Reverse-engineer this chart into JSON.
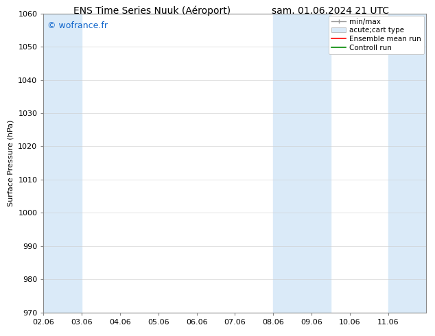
{
  "title_left": "ENS Time Series Nuuk (Aéroport)",
  "title_right": "sam. 01.06.2024 21 UTC",
  "ylabel": "Surface Pressure (hPa)",
  "ylim": [
    970,
    1060
  ],
  "yticks": [
    970,
    980,
    990,
    1000,
    1010,
    1020,
    1030,
    1040,
    1050,
    1060
  ],
  "xlim_start": 0,
  "xlim_end": 10,
  "xtick_labels": [
    "02.06",
    "03.06",
    "04.06",
    "05.06",
    "06.06",
    "07.06",
    "08.06",
    "09.06",
    "10.06",
    "11.06"
  ],
  "xtick_positions": [
    0,
    1,
    2,
    3,
    4,
    5,
    6,
    7,
    8,
    9
  ],
  "watermark": "© wofrance.fr",
  "watermark_color": "#1166cc",
  "bg_color": "#ffffff",
  "plot_bg_color": "#ffffff",
  "shaded_bands": [
    {
      "x_start": 0.0,
      "x_end": 1.0,
      "color": "#daeaf8"
    },
    {
      "x_start": 6.0,
      "x_end": 7.5,
      "color": "#daeaf8"
    },
    {
      "x_start": 9.0,
      "x_end": 10.0,
      "color": "#daeaf8"
    }
  ],
  "legend_entries": [
    {
      "label": "min/max",
      "color": "#999999",
      "lw": 1.0,
      "type": "minmax"
    },
    {
      "label": "acute;cart type",
      "color": "#daeaf8",
      "lw": 6,
      "type": "patch"
    },
    {
      "label": "Ensemble mean run",
      "color": "#ff0000",
      "lw": 1.2,
      "type": "line"
    },
    {
      "label": "Controll run",
      "color": "#008800",
      "lw": 1.2,
      "type": "line"
    }
  ],
  "spine_color": "#888888",
  "grid_color": "#cccccc",
  "title_fontsize": 10,
  "label_fontsize": 8,
  "tick_fontsize": 8,
  "legend_fontsize": 7.5,
  "watermark_fontsize": 9
}
